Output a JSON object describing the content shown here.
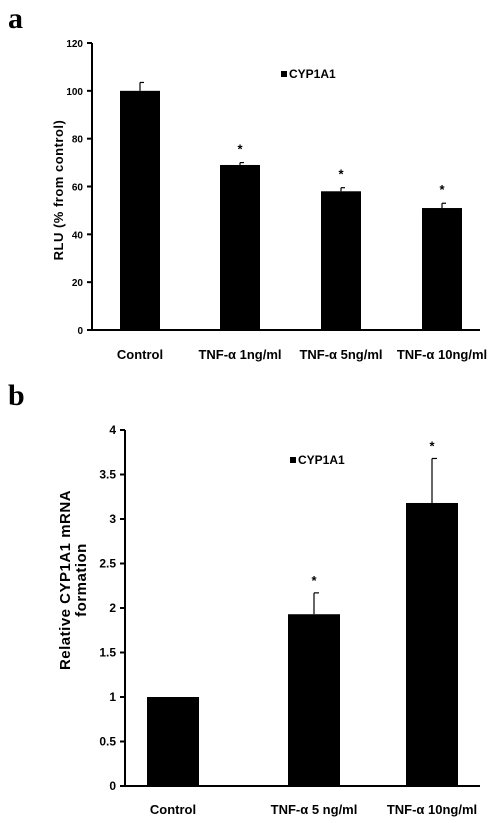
{
  "panels": [
    {
      "label": "a"
    },
    {
      "label": "b"
    }
  ],
  "chart_data": [
    {
      "type": "bar",
      "categories": [
        "Control",
        "TNF-α 1ng/ml",
        "TNF-α 5ng/ml",
        "TNF-α 10ng/ml"
      ],
      "series": [
        {
          "name": "CYP1A1",
          "values": [
            100,
            69,
            58,
            51
          ],
          "errors": [
            3.5,
            1,
            1.5,
            2
          ],
          "significance": [
            "",
            "*",
            "*",
            "*"
          ]
        }
      ],
      "xlabel": "",
      "ylabel": "RLU (% from control)",
      "ylim": [
        0,
        120
      ],
      "yticks": [
        "0",
        "20",
        "40",
        "60",
        "80",
        "100",
        "120"
      ],
      "legend": "top-center",
      "grid": false
    },
    {
      "type": "bar",
      "categories": [
        "Control",
        "TNF-α 5 ng/ml",
        "TNF-α 10ng/ml"
      ],
      "series": [
        {
          "name": "CYP1A1",
          "values": [
            1.0,
            1.93,
            3.18
          ],
          "errors": [
            0,
            0.24,
            0.5
          ],
          "significance": [
            "",
            "*",
            "*"
          ]
        }
      ],
      "xlabel": "",
      "ylabel": [
        "Relative CYP1A1 mRNA",
        "formation"
      ],
      "ylim": [
        0,
        4
      ],
      "yticks": [
        "0",
        "0.5",
        "1",
        "1.5",
        "2",
        "2.5",
        "3",
        "3.5",
        "4"
      ],
      "legend": "top-center",
      "grid": false
    }
  ],
  "colors": {
    "bar": "#000000",
    "axis": "#000000",
    "background": "#ffffff"
  }
}
